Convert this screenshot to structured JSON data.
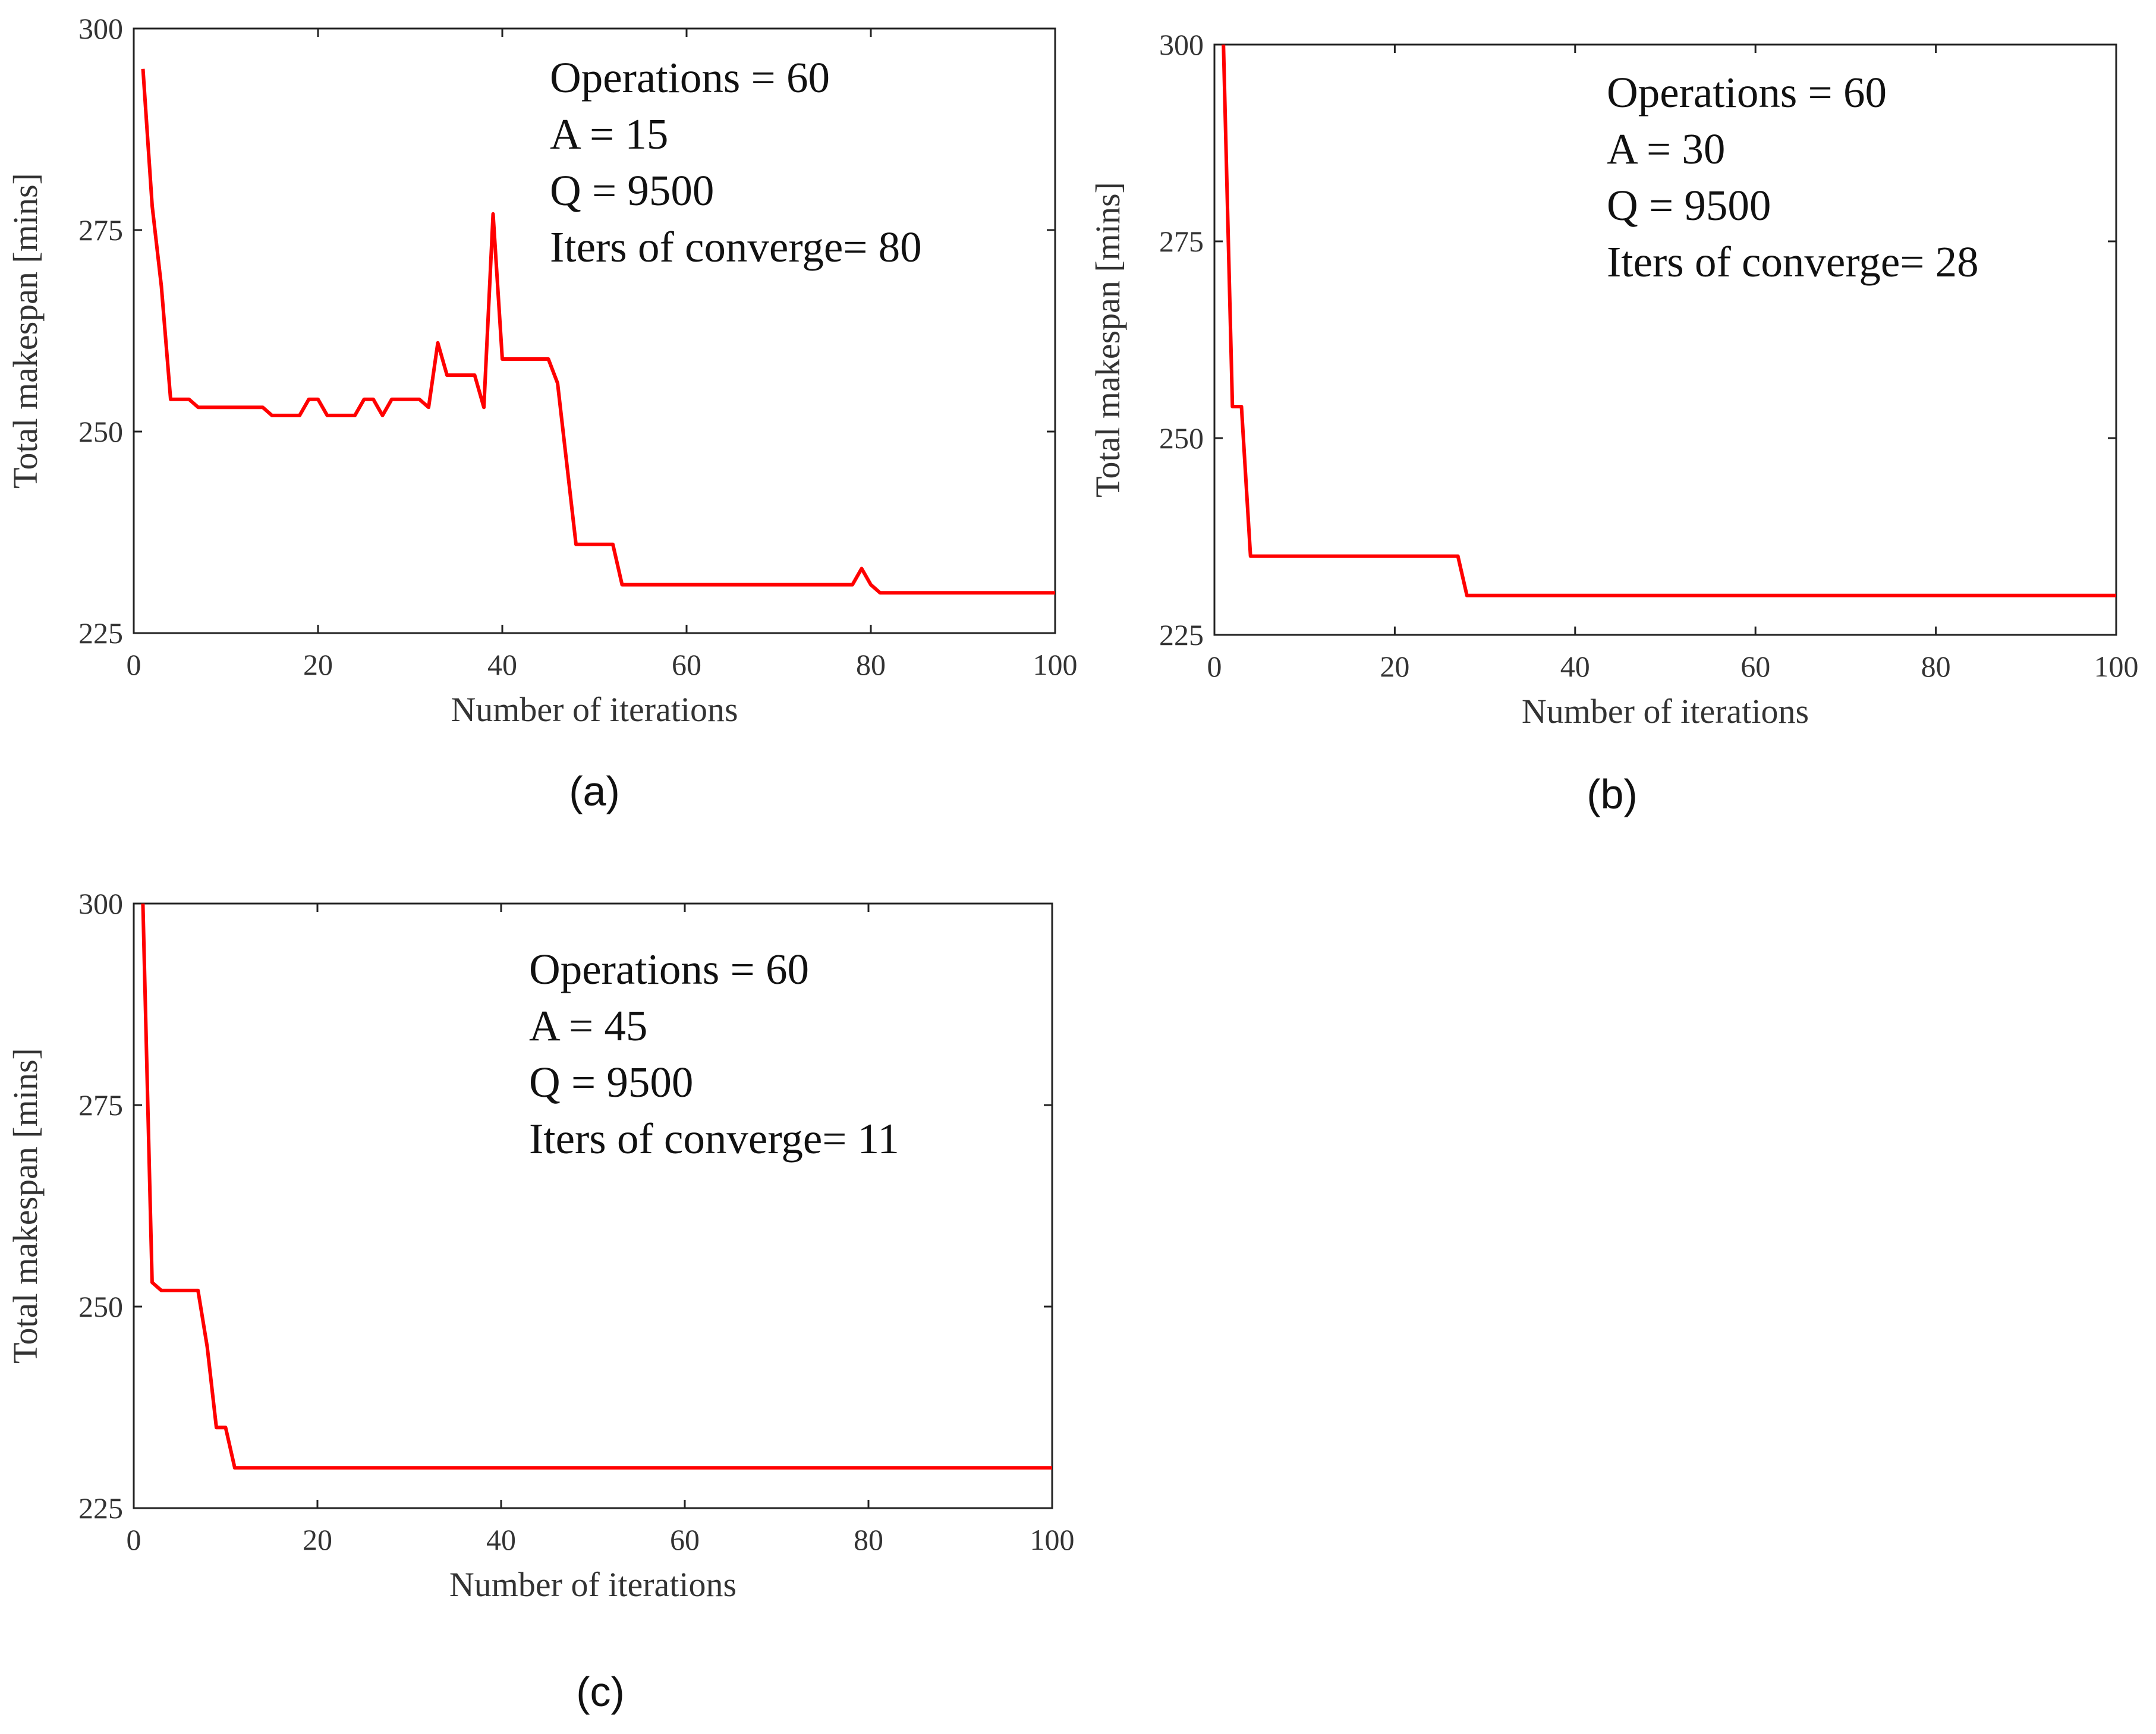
{
  "chart_data": [
    {
      "type": "line",
      "panel_label": "(a)",
      "xlabel": "Number of iterations",
      "ylabel": "Total makespan [mins]",
      "xlim": [
        0,
        100
      ],
      "ylim": [
        225,
        300
      ],
      "xticks": [
        0,
        20,
        40,
        60,
        80,
        100
      ],
      "yticks": [
        225,
        250,
        275,
        300
      ],
      "annotations": [
        "Operations = 60",
        "A = 15",
        "Q = 9500",
        "Iters of converge= 80"
      ],
      "series": [
        {
          "name": "makespan",
          "color": "#ff0000",
          "x": [
            1,
            2,
            3,
            4,
            5,
            6,
            7,
            8,
            14,
            15,
            18,
            19,
            20,
            21,
            24,
            25,
            26,
            27,
            28,
            31,
            32,
            33,
            34,
            37,
            38,
            39,
            40,
            45,
            46,
            48,
            52,
            53,
            78,
            79,
            80,
            81,
            100
          ],
          "y": [
            295,
            278,
            268,
            254,
            254,
            254,
            253,
            253,
            253,
            252,
            252,
            254,
            254,
            252,
            252,
            254,
            254,
            252,
            254,
            254,
            253,
            261,
            257,
            257,
            253,
            277,
            259,
            259,
            256,
            236,
            236,
            231,
            231,
            233,
            231,
            230,
            230
          ]
        }
      ]
    },
    {
      "type": "line",
      "panel_label": "(b)",
      "xlabel": "Number of iterations",
      "ylabel": "Total makespan [mins]",
      "xlim": [
        0,
        100
      ],
      "ylim": [
        225,
        300
      ],
      "xticks": [
        0,
        20,
        40,
        60,
        80,
        100
      ],
      "yticks": [
        225,
        250,
        275,
        300
      ],
      "annotations": [
        "Operations = 60",
        "A = 30",
        "Q = 9500",
        "Iters of converge= 28"
      ],
      "series": [
        {
          "name": "makespan",
          "color": "#ff0000",
          "x": [
            1,
            2,
            3,
            4,
            27,
            28,
            100
          ],
          "y": [
            300,
            254,
            254,
            235,
            235,
            230,
            230
          ]
        }
      ]
    },
    {
      "type": "line",
      "panel_label": "(c)",
      "xlabel": "Number of iterations",
      "ylabel": "Total makespan [mins]",
      "xlim": [
        0,
        100
      ],
      "ylim": [
        225,
        300
      ],
      "xticks": [
        0,
        20,
        40,
        60,
        80,
        100
      ],
      "yticks": [
        225,
        250,
        275,
        300
      ],
      "annotations": [
        "Operations = 60",
        "A = 45",
        "Q = 9500",
        "Iters of converge= 11"
      ],
      "series": [
        {
          "name": "makespan",
          "color": "#ff0000",
          "x": [
            1,
            2,
            3,
            7,
            8,
            9,
            10,
            11,
            100
          ],
          "y": [
            300,
            253,
            252,
            252,
            245,
            235,
            235,
            230,
            230
          ]
        }
      ]
    }
  ]
}
